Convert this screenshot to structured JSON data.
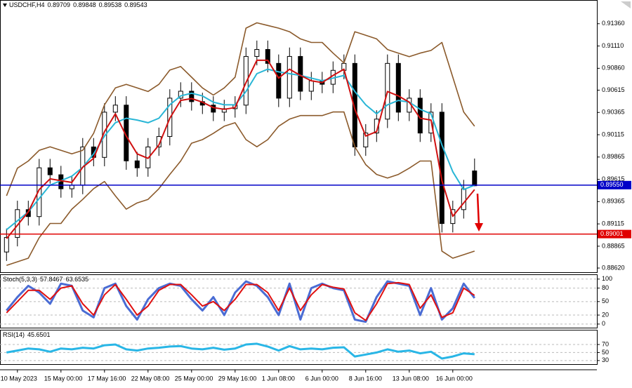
{
  "chart_data": [
    {
      "type": "candlestick",
      "symbol": "USDCHF,H4",
      "categories": [
        null,
        "10 May 2023",
        null,
        null,
        null,
        "15 May 00:00",
        null,
        null,
        null,
        "17 May 16:00",
        null,
        null,
        null,
        "22 May 08:00",
        null,
        null,
        null,
        "25 May 00:00",
        null,
        null,
        null,
        "29 May 16:00",
        null,
        null,
        null,
        "1 Jun 08:00",
        null,
        null,
        null,
        "6 Jun 00:00",
        null,
        null,
        null,
        "8 Jun 16:00",
        null,
        null,
        null,
        "13 Jun 08:00",
        null,
        null,
        null,
        "16 Jun 00:00",
        null,
        null
      ],
      "open": [
        0.888,
        0.88963,
        0.89275,
        0.89197,
        0.89744,
        0.89666,
        0.89509,
        0.89548,
        0.89978,
        0.89861,
        0.90368,
        0.90447,
        0.89822,
        0.89744,
        0.89978,
        0.90095,
        0.90525,
        0.90603,
        0.90486,
        0.90447,
        0.90368,
        0.90407,
        0.90447,
        0.90993,
        0.91071,
        0.90915,
        0.90525,
        0.90993,
        0.90603,
        0.9072,
        0.90681,
        0.90837,
        0.90915,
        0.89978,
        0.90134,
        0.9029,
        0.90915,
        0.90368,
        0.90525,
        0.90134,
        0.90368,
        0.89119,
        0.89275,
        0.89709
      ],
      "high": [
        0.89063,
        0.89375,
        0.89375,
        0.89844,
        0.89844,
        0.89766,
        0.89648,
        0.90078,
        0.90078,
        0.90468,
        0.90547,
        0.90547,
        0.89922,
        0.90078,
        0.90195,
        0.90625,
        0.90703,
        0.90703,
        0.90586,
        0.90547,
        0.90507,
        0.90547,
        0.91093,
        0.91171,
        0.91171,
        0.91015,
        0.91093,
        0.91093,
        0.9082,
        0.9082,
        0.90937,
        0.91015,
        0.91015,
        0.90234,
        0.9039,
        0.91015,
        0.91015,
        0.90625,
        0.90625,
        0.90468,
        0.90468,
        0.89375,
        0.89609,
        0.89848
      ],
      "low": [
        0.887,
        0.88863,
        0.89097,
        0.89097,
        0.89566,
        0.89409,
        0.89409,
        0.89448,
        0.89761,
        0.89761,
        0.90268,
        0.89722,
        0.89644,
        0.89644,
        0.89878,
        0.89995,
        0.90425,
        0.90386,
        0.90347,
        0.90268,
        0.90268,
        0.90307,
        0.90347,
        0.90893,
        0.90815,
        0.90425,
        0.90425,
        0.90503,
        0.90503,
        0.90581,
        0.90581,
        0.90737,
        0.89878,
        0.89878,
        0.90034,
        0.9019,
        0.90268,
        0.90268,
        0.90034,
        0.90034,
        0.89019,
        0.89019,
        0.89175,
        0.89538
      ],
      "close": [
        0.88963,
        0.89275,
        0.89197,
        0.89744,
        0.89666,
        0.89509,
        0.89548,
        0.89978,
        0.89861,
        0.90368,
        0.90447,
        0.89822,
        0.89744,
        0.89978,
        0.90095,
        0.90525,
        0.90603,
        0.90486,
        0.90447,
        0.90368,
        0.90407,
        0.90447,
        0.90993,
        0.91071,
        0.90915,
        0.90525,
        0.90993,
        0.90603,
        0.9072,
        0.90681,
        0.90837,
        0.90915,
        0.89978,
        0.90134,
        0.9029,
        0.90915,
        0.90368,
        0.90525,
        0.90134,
        0.90368,
        0.89119,
        0.89275,
        0.89509,
        0.89543
      ],
      "overlays": [
        {
          "color": "#8b5a2b",
          "values": [
            0.8943,
            0.8974,
            0.8982,
            0.8994,
            0.8998,
            0.8994,
            0.899,
            0.8994,
            0.9013,
            0.9045,
            0.9064,
            0.9068,
            0.9064,
            0.906,
            0.9068,
            0.9084,
            0.9088,
            0.9076,
            0.9064,
            0.9056,
            0.9064,
            0.9076,
            0.9131,
            0.9137,
            0.9134,
            0.9131,
            0.9127,
            0.9119,
            0.9115,
            0.9115,
            0.9103,
            0.9092,
            0.9127,
            0.9123,
            0.9119,
            0.9107,
            0.9103,
            0.9099,
            0.9103,
            0.9106,
            0.9115,
            0.9076,
            0.9037,
            0.9021
          ]
        },
        {
          "color": "#8b5a2b",
          "values": [
            0.8865,
            0.8869,
            0.8873,
            0.8896,
            0.8912,
            0.8912,
            0.8928,
            0.8939,
            0.8951,
            0.8959,
            0.8943,
            0.8928,
            0.8935,
            0.8939,
            0.8951,
            0.8967,
            0.8982,
            0.9002,
            0.9006,
            0.9013,
            0.9021,
            0.9025,
            0.9006,
            0.8998,
            0.9006,
            0.9021,
            0.9029,
            0.9033,
            0.9033,
            0.9033,
            0.9037,
            0.9037,
            0.8998,
            0.8978,
            0.8967,
            0.8963,
            0.8967,
            0.8974,
            0.8982,
            0.8982,
            0.8881,
            0.8873,
            0.8877,
            0.8881
          ]
        },
        {
          "color": "#29b6d6",
          "values": [
            0.8905,
            0.8915,
            0.8925,
            0.894,
            0.8955,
            0.896,
            0.8965,
            0.8975,
            0.899,
            0.901,
            0.9025,
            0.903,
            0.9028,
            0.9025,
            0.903,
            0.9045,
            0.9055,
            0.9058,
            0.9055,
            0.9048,
            0.9045,
            0.9045,
            0.906,
            0.908,
            0.9085,
            0.9082,
            0.908,
            0.9078,
            0.9075,
            0.9072,
            0.9075,
            0.9078,
            0.906,
            0.9045,
            0.9035,
            0.9045,
            0.905,
            0.9048,
            0.904,
            0.9035,
            0.9,
            0.897,
            0.895,
            0.8955
          ]
        },
        {
          "color": "#d01010",
          "values": [
            0.8895,
            0.891,
            0.8925,
            0.895,
            0.8962,
            0.896,
            0.8958,
            0.8975,
            0.8985,
            0.9015,
            0.9035,
            0.901,
            0.899,
            0.8985,
            0.9,
            0.903,
            0.905,
            0.9052,
            0.9048,
            0.9042,
            0.904,
            0.9042,
            0.907,
            0.9095,
            0.9095,
            0.9075,
            0.9085,
            0.9078,
            0.9072,
            0.907,
            0.9078,
            0.9085,
            0.904,
            0.901,
            0.9015,
            0.906,
            0.9055,
            0.9048,
            0.903,
            0.9028,
            0.896,
            0.892,
            0.8935,
            0.895
          ]
        }
      ],
      "levels": [
        {
          "value": 0.8955,
          "label": "0.89550",
          "color": "#0000c8"
        },
        {
          "value": 0.89001,
          "label": "0.89001",
          "color": "#e00000"
        }
      ],
      "ylim": [
        0.88573,
        0.91618
      ],
      "yticks": [
        {
          "value": 0.9136,
          "label": "0.91360"
        },
        {
          "value": 0.9111,
          "label": "0.91110"
        },
        {
          "value": 0.9086,
          "label": "0.90860"
        },
        {
          "value": 0.90615,
          "label": "0.90615"
        },
        {
          "value": 0.90365,
          "label": "0.90365"
        },
        {
          "value": 0.90115,
          "label": "0.90115"
        },
        {
          "value": 0.89865,
          "label": "0.89865"
        },
        {
          "value": 0.89615,
          "label": "0.89615"
        },
        {
          "value": 0.89365,
          "label": "0.89365"
        },
        {
          "value": 0.89115,
          "label": "0.89115"
        },
        {
          "value": 0.88865,
          "label": "0.88865"
        },
        {
          "value": 0.8862,
          "label": "0.88620"
        }
      ]
    },
    {
      "type": "line",
      "title": "Stoch(5,3,3)",
      "series": [
        {
          "color": "#4a6cd4",
          "values": [
            30,
            60,
            85,
            70,
            45,
            90,
            85,
            30,
            15,
            80,
            90,
            40,
            10,
            55,
            80,
            90,
            85,
            55,
            30,
            60,
            20,
            70,
            95,
            85,
            60,
            20,
            90,
            10,
            80,
            90,
            80,
            75,
            10,
            5,
            60,
            95,
            90,
            85,
            20,
            80,
            10,
            35,
            90,
            57.8467
          ]
        },
        {
          "color": "#e01010",
          "values": [
            25,
            50,
            75,
            75,
            55,
            80,
            85,
            45,
            20,
            65,
            88,
            55,
            20,
            40,
            75,
            88,
            88,
            65,
            40,
            50,
            30,
            55,
            88,
            88,
            70,
            30,
            80,
            30,
            65,
            88,
            82,
            78,
            25,
            8,
            45,
            90,
            92,
            88,
            35,
            65,
            15,
            25,
            80,
            63.6535
          ]
        }
      ],
      "ylim": [
        -8,
        109
      ],
      "yticks": [
        100,
        80,
        50,
        20,
        0
      ],
      "grid": true
    },
    {
      "type": "line",
      "title": "RSI(14)",
      "series": [
        {
          "color": "#29b6e6",
          "values": [
            50,
            55,
            60,
            58,
            52,
            60,
            58,
            62,
            60,
            68,
            70,
            58,
            55,
            60,
            62,
            65,
            66,
            60,
            58,
            62,
            57,
            60,
            70,
            72,
            65,
            55,
            66,
            58,
            60,
            58,
            62,
            63,
            40,
            45,
            50,
            58,
            52,
            55,
            48,
            52,
            35,
            40,
            48,
            45.6501
          ]
        }
      ],
      "ylim": [
        21,
        105
      ],
      "yticks": [
        70,
        50,
        30
      ],
      "grid": true
    }
  ]
}
